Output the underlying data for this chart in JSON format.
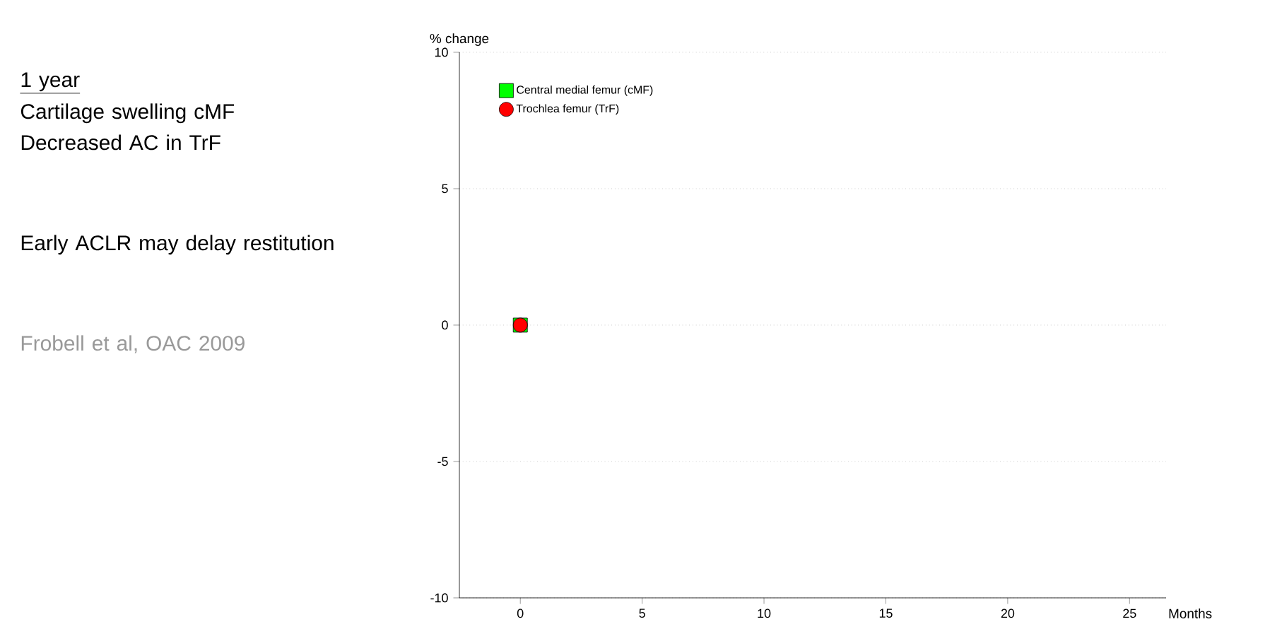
{
  "chart_data": {
    "type": "scatter",
    "ylabel": "% change",
    "xlabel": "Months",
    "annotations": [
      "1 year",
      "Cartilage swelling cMF",
      "Decreased AC in TrF",
      "Early ACLR may delay restitution",
      "Frobell et al, OAC 2009"
    ],
    "series": [
      {
        "name": "Central medial femur (cMF)",
        "color": "#00ff00",
        "marker": "square",
        "x": [
          0
        ],
        "values": [
          0
        ]
      },
      {
        "name": "Trochlea femur (TrF)",
        "color": "#ff0000",
        "marker": "circle",
        "x": [
          0
        ],
        "values": [
          0
        ]
      }
    ],
    "xlim": [
      -2.5,
      26.5
    ],
    "xticks": [
      0,
      5,
      10,
      15,
      20,
      25
    ],
    "ylim": [
      -10,
      10
    ],
    "yticks": [
      -10,
      -5,
      0,
      5,
      10
    ],
    "grid": "y",
    "legend": "top left"
  }
}
